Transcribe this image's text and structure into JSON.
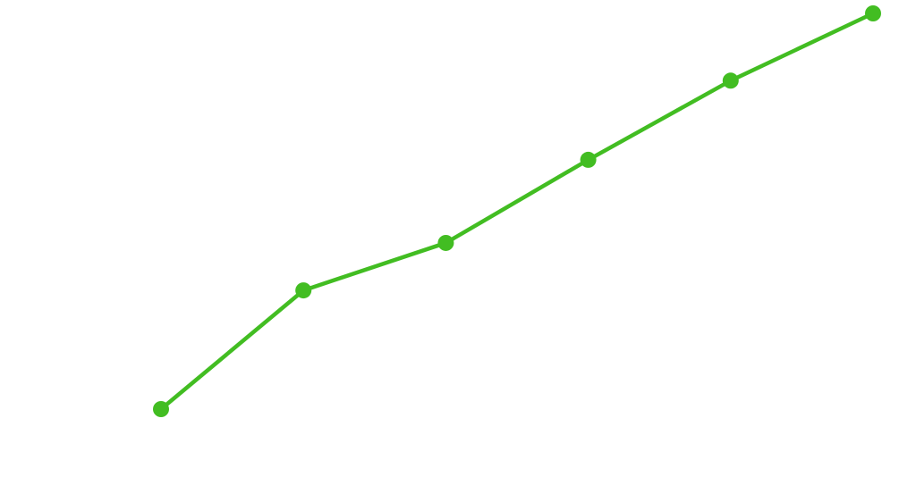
{
  "chart_data": {
    "type": "line",
    "categories": [
      null,
      null,
      null,
      null,
      null,
      null
    ],
    "values": [
      0,
      30,
      42,
      63,
      83,
      100
    ],
    "color": "#42bd22"
  }
}
